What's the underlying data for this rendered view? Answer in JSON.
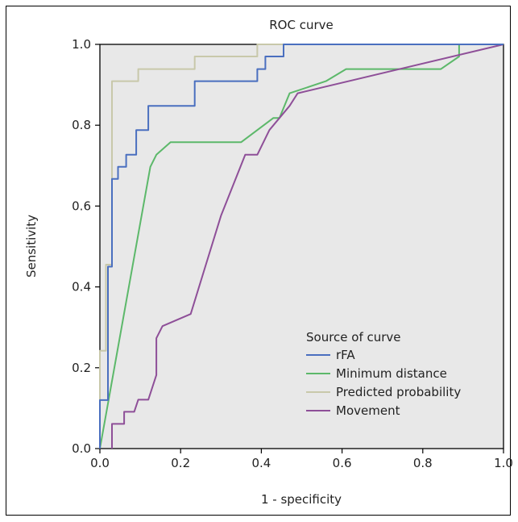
{
  "chart_data": {
    "type": "line",
    "title": "ROC curve",
    "xlabel": "1 - specificity",
    "ylabel": "Sensitivity",
    "xlim": [
      0,
      1
    ],
    "ylim": [
      0,
      1
    ],
    "xticks": [
      "0.0",
      "0.2",
      "0.4",
      "0.6",
      "0.8",
      "1.0"
    ],
    "yticks": [
      "0.0",
      "0.2",
      "0.4",
      "0.6",
      "0.8",
      "1.0"
    ],
    "grid": false,
    "legend_title": "Source of curve",
    "legend_position": "bottom-right",
    "series": [
      {
        "name": "rFA",
        "color": "#4a6fbf",
        "x": [
          0,
          0,
          0.02,
          0.02,
          0.03,
          0.03,
          0.045,
          0.045,
          0.065,
          0.065,
          0.09,
          0.09,
          0.12,
          0.12,
          0.235,
          0.235,
          0.39,
          0.39,
          0.41,
          0.41,
          0.455,
          0.455,
          1.0
        ],
        "y": [
          0,
          0.12,
          0.12,
          0.45,
          0.45,
          0.667,
          0.667,
          0.697,
          0.697,
          0.727,
          0.727,
          0.788,
          0.788,
          0.848,
          0.848,
          0.909,
          0.909,
          0.939,
          0.939,
          0.97,
          0.97,
          1.0,
          1.0
        ]
      },
      {
        "name": "Minimum distance",
        "color": "#5cb86a",
        "x": [
          0,
          0.125,
          0.14,
          0.175,
          0.35,
          0.43,
          0.445,
          0.47,
          0.56,
          0.61,
          0.845,
          0.89,
          0.89,
          1.0
        ],
        "y": [
          0,
          0.697,
          0.727,
          0.758,
          0.758,
          0.818,
          0.818,
          0.879,
          0.909,
          0.939,
          0.939,
          0.97,
          1.0,
          1.0
        ]
      },
      {
        "name": "Predicted probability",
        "color": "#c8c8aa",
        "x": [
          0,
          0,
          0.015,
          0.015,
          0.03,
          0.03,
          0.095,
          0.095,
          0.235,
          0.235,
          0.39,
          0.39,
          1.0
        ],
        "y": [
          0,
          0.242,
          0.242,
          0.455,
          0.455,
          0.909,
          0.909,
          0.939,
          0.939,
          0.97,
          0.97,
          1.0,
          1.0
        ]
      },
      {
        "name": "Movement",
        "color": "#8e4f98",
        "x": [
          0.03,
          0.03,
          0.06,
          0.06,
          0.085,
          0.095,
          0.12,
          0.14,
          0.14,
          0.155,
          0.225,
          0.3,
          0.36,
          0.39,
          0.42,
          0.47,
          0.49,
          1.0
        ],
        "y": [
          0,
          0.061,
          0.061,
          0.091,
          0.091,
          0.121,
          0.121,
          0.182,
          0.273,
          0.303,
          0.333,
          0.576,
          0.727,
          0.727,
          0.788,
          0.848,
          0.879,
          1.0
        ]
      }
    ]
  }
}
